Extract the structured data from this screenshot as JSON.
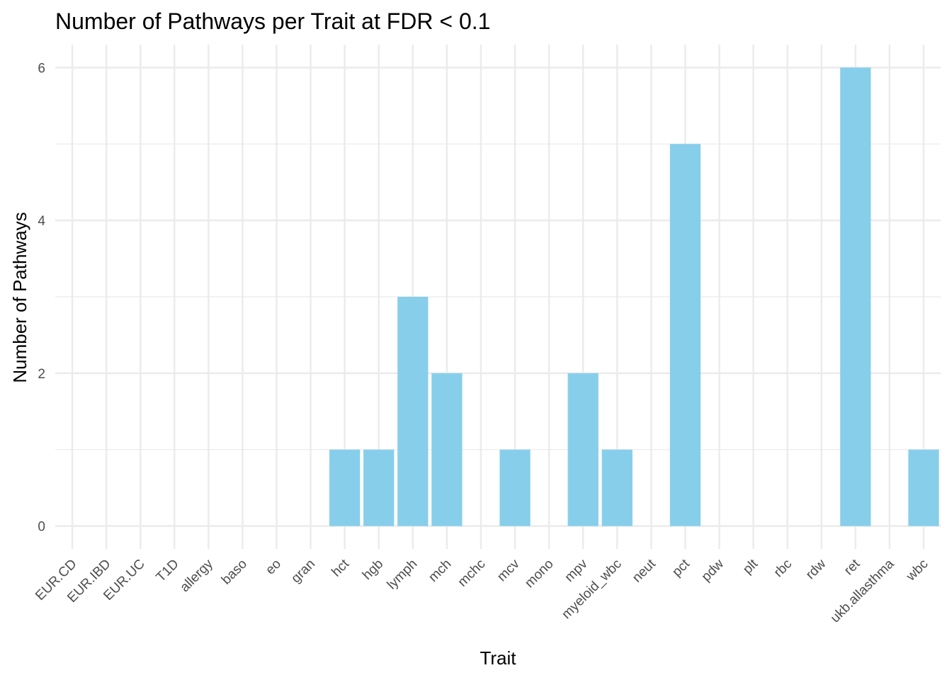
{
  "chart_data": {
    "type": "bar",
    "title": "Number of Pathways per Trait at FDR < 0.1",
    "xlabel": "Trait",
    "ylabel": "Number of Pathways",
    "categories": [
      "EUR.CD",
      "EUR.IBD",
      "EUR.UC",
      "T1D",
      "allergy",
      "baso",
      "eo",
      "gran",
      "hct",
      "hgb",
      "lymph",
      "mch",
      "mchc",
      "mcv",
      "mono",
      "mpv",
      "myeloid_wbc",
      "neut",
      "pct",
      "pdw",
      "plt",
      "rbc",
      "rdw",
      "ret",
      "ukb.allasthma",
      "wbc"
    ],
    "values": [
      0,
      0,
      0,
      0,
      0,
      0,
      0,
      0,
      1,
      1,
      3,
      2,
      0,
      1,
      0,
      2,
      1,
      0,
      5,
      0,
      0,
      0,
      0,
      6,
      0,
      1
    ],
    "yticks": [
      0,
      2,
      4,
      6
    ],
    "ylim": [
      -0.3,
      6.3
    ],
    "grid": true,
    "legend": "none",
    "bar_color": "#87CEEB",
    "grid_color": "#EBEBEB"
  }
}
